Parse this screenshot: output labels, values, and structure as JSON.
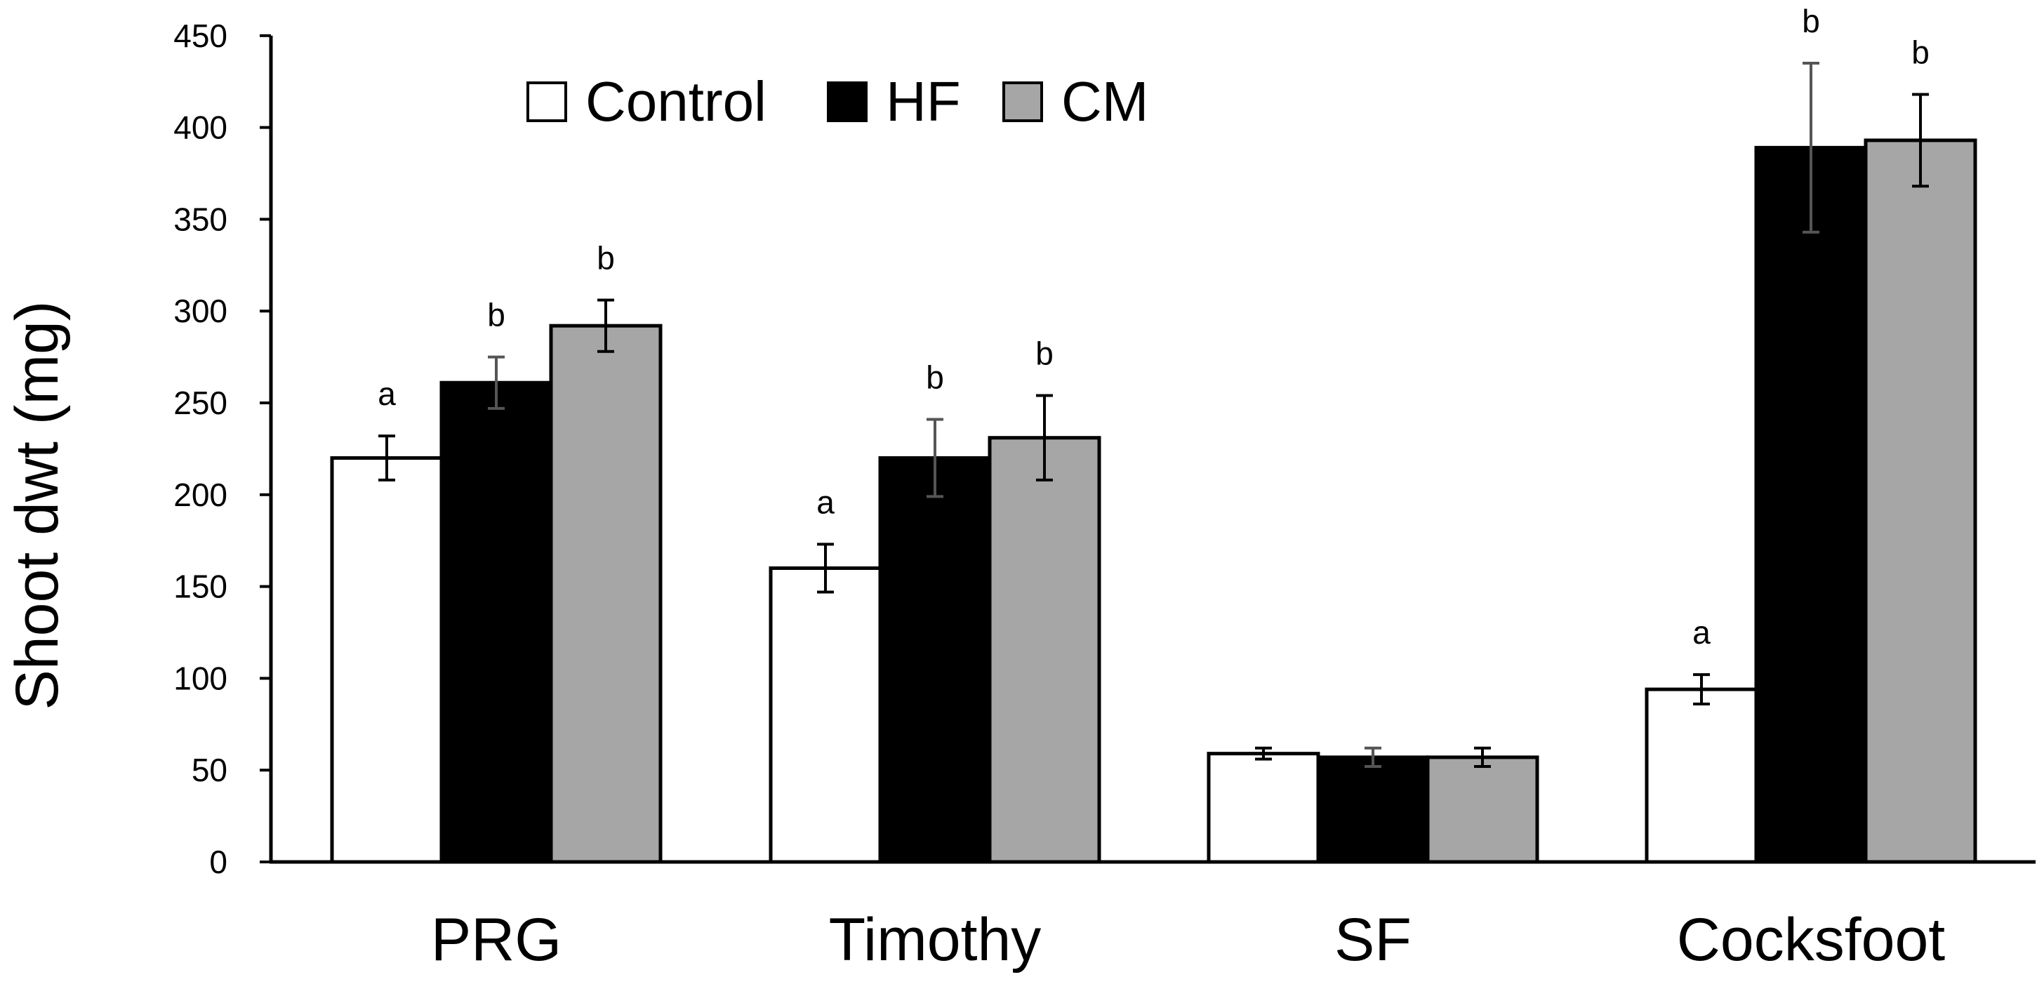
{
  "chart_data": {
    "type": "bar",
    "title": "",
    "xlabel": "",
    "ylabel": "Shoot dwt (mg)",
    "ylim": [
      0,
      450
    ],
    "yticks": [
      0,
      50,
      100,
      150,
      200,
      250,
      300,
      350,
      400,
      450
    ],
    "grid": false,
    "legend_position": "top-left",
    "categories": [
      "PRG",
      "Timothy",
      "SF",
      "Cocksfoot"
    ],
    "series": [
      {
        "name": "Control",
        "color": "#ffffff",
        "values": [
          220,
          160,
          59,
          94
        ],
        "errors": [
          12,
          13,
          3,
          8
        ],
        "labels": [
          "a",
          "a",
          "",
          "a"
        ]
      },
      {
        "name": "HF",
        "color": "#000000",
        "values": [
          261,
          220,
          57,
          389
        ],
        "errors": [
          14,
          21,
          5,
          46
        ],
        "labels": [
          "b",
          "b",
          "",
          "b"
        ]
      },
      {
        "name": "CM",
        "color": "#a6a6a6",
        "values": [
          292,
          231,
          57,
          393
        ],
        "errors": [
          14,
          23,
          5,
          25
        ],
        "labels": [
          "b",
          "b",
          "",
          "b"
        ]
      }
    ]
  }
}
